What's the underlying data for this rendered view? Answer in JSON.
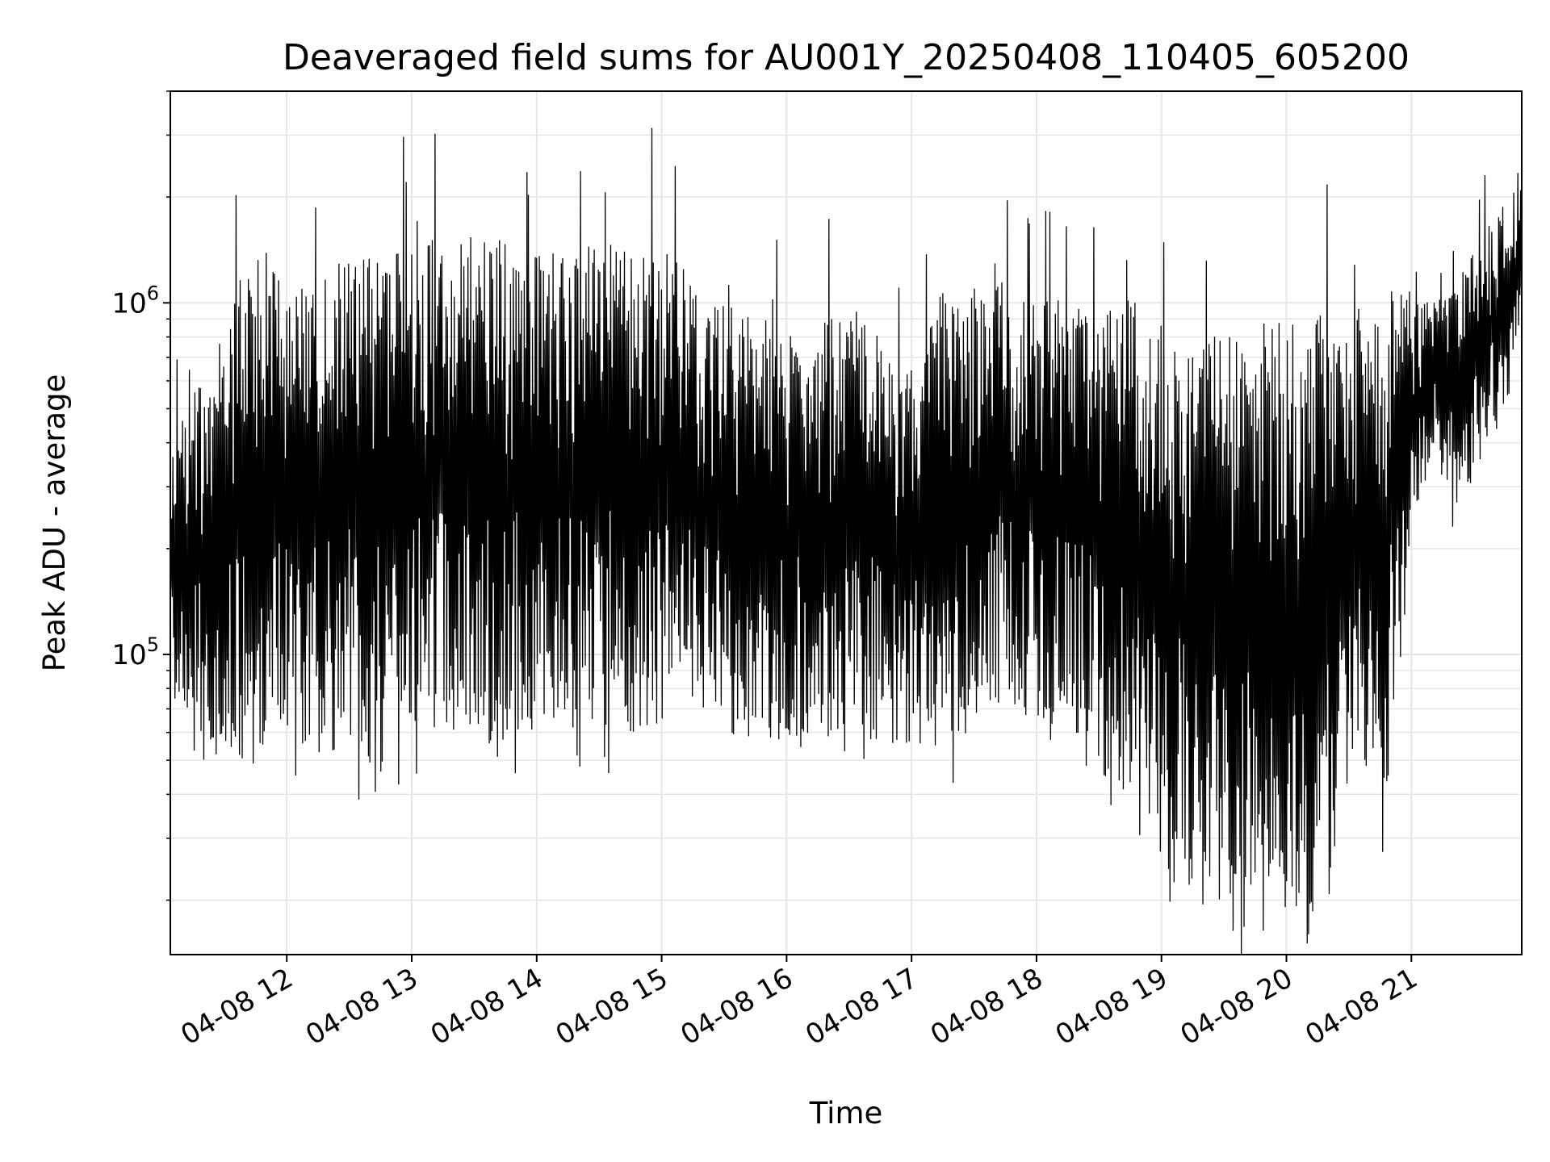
{
  "chart_data": {
    "type": "line",
    "title": "Deaveraged field sums for AU001Y_20250408_110405_605200",
    "xlabel": "Time",
    "ylabel": "Peak ADU - average",
    "y_scale": "log",
    "ylim": [
      14000,
      4000000
    ],
    "xlim": [
      "04-08 11:04:05",
      "04-08 21:53:00"
    ],
    "grid": true,
    "line_color": "#000000",
    "grid_color": "#e6e6e6",
    "x_ticks": [
      {
        "value": "04-08 12:00",
        "label": "04-08 12"
      },
      {
        "value": "04-08 13:00",
        "label": "04-08 13"
      },
      {
        "value": "04-08 14:00",
        "label": "04-08 14"
      },
      {
        "value": "04-08 15:00",
        "label": "04-08 15"
      },
      {
        "value": "04-08 16:00",
        "label": "04-08 16"
      },
      {
        "value": "04-08 17:00",
        "label": "04-08 17"
      },
      {
        "value": "04-08 18:00",
        "label": "04-08 18"
      },
      {
        "value": "04-08 19:00",
        "label": "04-08 19"
      },
      {
        "value": "04-08 20:00",
        "label": "04-08 20"
      },
      {
        "value": "04-08 21:00",
        "label": "04-08 21"
      }
    ],
    "y_ticks": [
      {
        "value": 100000,
        "base": "10",
        "exp": "5"
      },
      {
        "value": 1000000,
        "base": "10",
        "exp": "6"
      }
    ],
    "series": [
      {
        "x": [
          "04-08 11:04",
          "04-08 11:20",
          "04-08 11:40",
          "04-08 11:50",
          "04-08 12:00",
          "04-08 12:20",
          "04-08 12:30",
          "04-08 12:45",
          "04-08 13:00",
          "04-08 13:15",
          "04-08 13:30",
          "04-08 13:45",
          "04-08 14:00",
          "04-08 14:15",
          "04-08 14:30",
          "04-08 14:45",
          "04-08 15:00",
          "04-08 15:05",
          "04-08 15:15",
          "04-08 15:30",
          "04-08 15:45",
          "04-08 16:00",
          "04-08 16:15",
          "04-08 16:30",
          "04-08 16:45",
          "04-08 17:00",
          "04-08 17:15",
          "04-08 17:30",
          "04-08 17:45",
          "04-08 18:00",
          "04-08 18:15",
          "04-08 18:30",
          "04-08 18:45",
          "04-08 19:00",
          "04-08 19:15",
          "04-08 19:30",
          "04-08 19:35",
          "04-08 19:45",
          "04-08 20:00",
          "04-08 20:10",
          "04-08 20:20",
          "04-08 20:35",
          "04-08 20:45",
          "04-08 21:00",
          "04-08 21:10",
          "04-08 21:20",
          "04-08 21:35",
          "04-08 21:45",
          "04-08 21:53"
        ],
        "low": [
          85000,
          58000,
          50000,
          48000,
          52000,
          50000,
          56000,
          45000,
          62000,
          62000,
          56000,
          55000,
          62000,
          60000,
          64000,
          60000,
          62000,
          90000,
          75000,
          60000,
          58000,
          58000,
          60000,
          60000,
          56000,
          55000,
          55000,
          60000,
          75000,
          62000,
          65000,
          48000,
          34000,
          24000,
          20000,
          17000,
          16000,
          24000,
          22000,
          19000,
          22000,
          48000,
          28000,
          180000,
          400000,
          250000,
          350000,
          500000,
          700000
        ],
        "high": [
          450000,
          600000,
          1400000,
          1300000,
          1100000,
          1250000,
          1400000,
          1350000,
          1500000,
          1550000,
          1550000,
          1600000,
          1500000,
          1400000,
          1550000,
          1500000,
          1400000,
          1500000,
          1100000,
          1000000,
          900000,
          900000,
          850000,
          1000000,
          800000,
          650000,
          1100000,
          1100000,
          1200000,
          1000000,
          1050000,
          1000000,
          1100000,
          900000,
          800000,
          950000,
          800000,
          900000,
          900000,
          1000000,
          900000,
          1000000,
          1100000,
          1050000,
          1000000,
          1100000,
          1600000,
          2000000,
          2200000
        ]
      }
    ]
  }
}
